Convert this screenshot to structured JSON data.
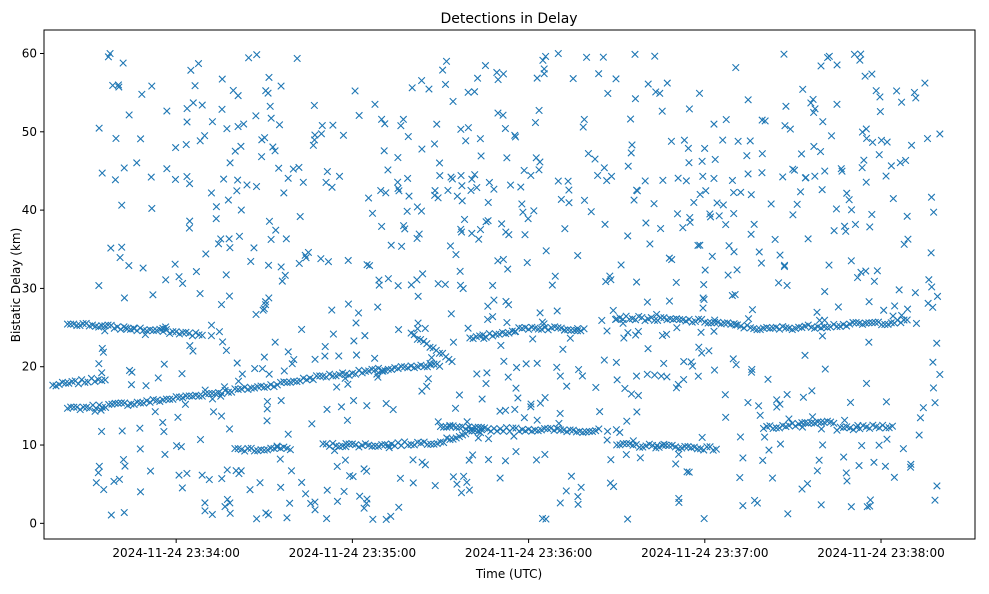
{
  "chart_data": {
    "type": "scatter",
    "title": "Detections in Delay",
    "xlabel": "Time (UTC)",
    "ylabel": "Bistatic Delay (km)",
    "marker": "x",
    "color": "#1f77b4",
    "x_range": [
      "2024-11-24 23:33:15",
      "2024-11-24 23:38:32"
    ],
    "ylim": [
      -2,
      63
    ],
    "grid": false,
    "xticks": [
      "2024-11-24 23:34:00",
      "2024-11-24 23:35:00",
      "2024-11-24 23:36:00",
      "2024-11-24 23:37:00",
      "2024-11-24 23:38:00"
    ],
    "yticks": [
      0,
      10,
      20,
      30,
      40,
      50,
      60
    ],
    "series": [
      {
        "tracks": [
          {
            "x": [
              "2024-11-24 23:33:18",
              "2024-11-24 23:33:30",
              "2024-11-24 23:33:37"
            ],
            "y": [
              17.6,
              18.2,
              18.6
            ]
          },
          {
            "x": [
              "2024-11-24 23:33:23",
              "2024-11-24 23:33:50",
              "2024-11-24 23:34:10",
              "2024-11-24 23:34:30",
              "2024-11-24 23:34:50",
              "2024-11-24 23:35:10",
              "2024-11-24 23:35:30"
            ],
            "y": [
              14.6,
              15.5,
              16.5,
              17.5,
              18.8,
              19.6,
              20.2
            ]
          },
          {
            "x": [
              "2024-11-24 23:33:23",
              "2024-11-24 23:33:40",
              "2024-11-24 23:34:00",
              "2024-11-24 23:34:10"
            ],
            "y": [
              25.6,
              25.0,
              24.4,
              24.0
            ]
          },
          {
            "x": [
              "2024-11-24 23:34:50",
              "2024-11-24 23:35:10",
              "2024-11-24 23:35:30",
              "2024-11-24 23:35:45"
            ],
            "y": [
              10.0,
              10.0,
              10.4,
              12.2
            ]
          },
          {
            "x": [
              "2024-11-24 23:34:20",
              "2024-11-24 23:34:40"
            ],
            "y": [
              9.4,
              9.6
            ]
          },
          {
            "x": [
              "2024-11-24 23:35:30",
              "2024-11-24 23:35:45"
            ],
            "y": [
              12.3,
              12.0
            ]
          },
          {
            "x": [
              "2024-11-24 23:35:45",
              "2024-11-24 23:36:00",
              "2024-11-24 23:36:25"
            ],
            "y": [
              12.0,
              12.0,
              11.8
            ]
          },
          {
            "x": [
              "2024-11-24 23:36:30",
              "2024-11-24 23:36:50",
              "2024-11-24 23:37:05"
            ],
            "y": [
              10.0,
              9.8,
              9.5
            ]
          },
          {
            "x": [
              "2024-11-24 23:37:20",
              "2024-11-24 23:37:45"
            ],
            "y": [
              12.2,
              13.0
            ]
          },
          {
            "x": [
              "2024-11-24 23:37:45",
              "2024-11-24 23:38:05"
            ],
            "y": [
              12.0,
              12.5
            ]
          },
          {
            "x": [
              "2024-11-24 23:35:20",
              "2024-11-24 23:35:35"
            ],
            "y": [
              24.2,
              20.6
            ]
          },
          {
            "x": [
              "2024-11-24 23:35:40",
              "2024-11-24 23:36:00",
              "2024-11-24 23:36:20"
            ],
            "y": [
              23.5,
              25.0,
              24.8
            ]
          },
          {
            "x": [
              "2024-11-24 23:36:30",
              "2024-11-24 23:37:00",
              "2024-11-24 23:37:20",
              "2024-11-24 23:38:10"
            ],
            "y": [
              26.3,
              25.8,
              24.8,
              25.8
            ]
          }
        ]
      }
    ]
  }
}
